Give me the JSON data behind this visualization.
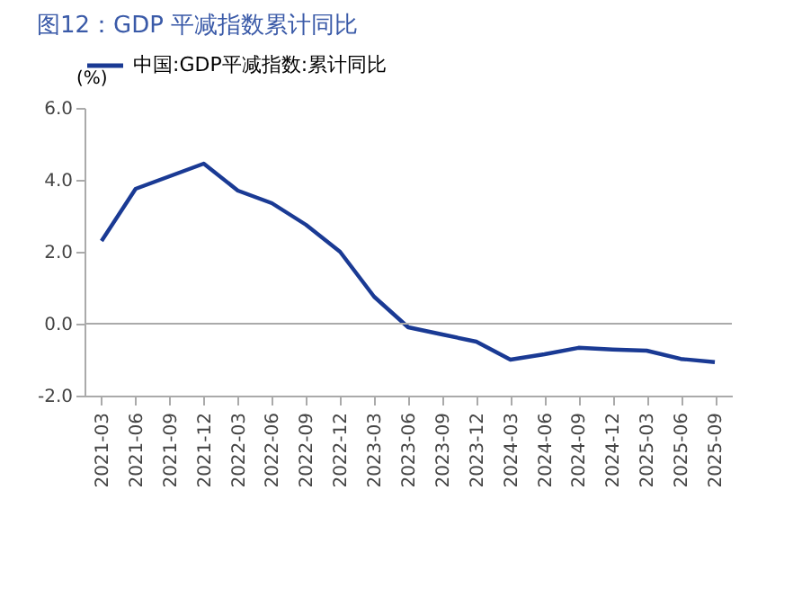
{
  "chart_data": {
    "type": "line",
    "title": "图12：GDP 平减指数累计同比",
    "ylabel": "(%)",
    "categories": [
      "2021-03",
      "2021-06",
      "2021-09",
      "2021-12",
      "2022-03",
      "2022-06",
      "2022-09",
      "2022-12",
      "2023-03",
      "2023-06",
      "2023-09",
      "2023-12",
      "2024-03",
      "2024-06",
      "2024-09",
      "2024-12",
      "2025-03",
      "2025-06",
      "2025-09"
    ],
    "series": [
      {
        "name": "中国:GDP平减指数:累计同比",
        "color": "#1a3a94",
        "values": [
          2.3,
          3.75,
          4.1,
          4.45,
          3.7,
          3.35,
          2.75,
          2.0,
          0.75,
          -0.1,
          -0.3,
          -0.5,
          -1.0,
          -0.85,
          -0.67,
          -0.72,
          -0.75,
          -0.98,
          -1.07
        ]
      }
    ],
    "ylim": [
      -2,
      6
    ],
    "yticks": [
      {
        "value": -2,
        "label": "-2.0"
      },
      {
        "value": 0,
        "label": "0.0"
      },
      {
        "value": 2,
        "label": "2.0"
      },
      {
        "value": 4,
        "label": "4.0"
      },
      {
        "value": 6,
        "label": "6.0"
      }
    ],
    "ref_lines": [
      {
        "axis": "y",
        "value": 0,
        "color": "#aaaaaa"
      }
    ],
    "grid": false,
    "legend": "top",
    "marker": "none",
    "line_style": "solid"
  }
}
